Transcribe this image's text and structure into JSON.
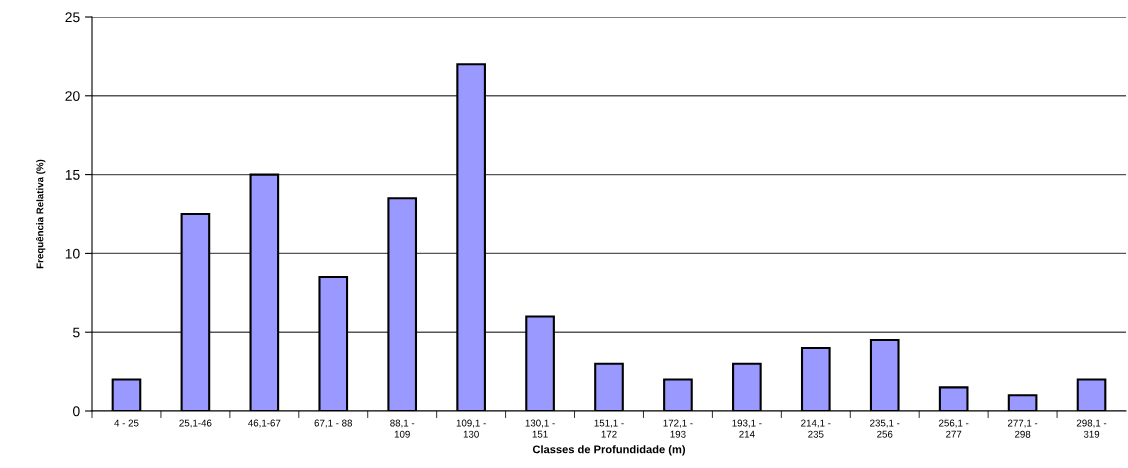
{
  "chart_data": {
    "type": "bar",
    "xlabel": "Classes de Profundidade (m)",
    "ylabel": "Frequência Relativa (%)",
    "categories": [
      "4 - 25",
      "25,1-46",
      "46,1-67",
      "67,1 - 88",
      "88,1 -\n109",
      "109,1 -\n130",
      "130,1 -\n151",
      "151,1 -\n172",
      "172,1 -\n193",
      "193,1 -\n214",
      "214,1 -\n235",
      "235,1 -\n256",
      "256,1 -\n277",
      "277,1 -\n298",
      "298,1 -\n319"
    ],
    "values": [
      2,
      12.5,
      15,
      8.5,
      13.5,
      22,
      6,
      3,
      2,
      3,
      4,
      4.5,
      1.5,
      1,
      2
    ],
    "color": "#9999ff",
    "ylim": [
      0,
      25
    ],
    "yticks": [
      0,
      5,
      10,
      15,
      20,
      25
    ],
    "grid": "y"
  }
}
